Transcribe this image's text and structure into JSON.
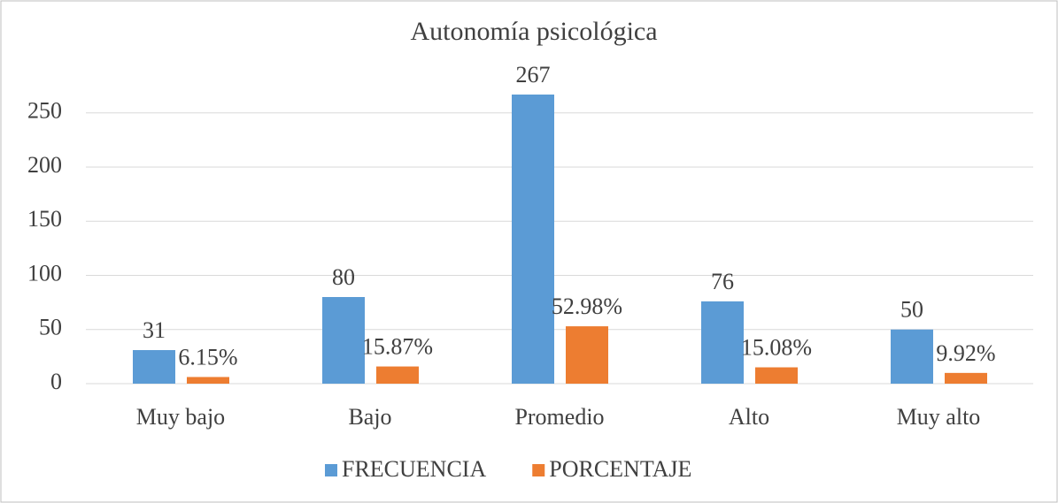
{
  "chart_data": {
    "type": "bar",
    "title": "Autonomía psicológica",
    "categories": [
      "Muy bajo",
      "Bajo",
      "Promedio",
      "Alto",
      "Muy alto"
    ],
    "series": [
      {
        "name": "FRECUENCIA",
        "color": "#5b9bd5",
        "values": [
          31,
          80,
          267,
          76,
          50
        ]
      },
      {
        "name": "PORCENTAJE",
        "color": "#ed7d31",
        "values": [
          6.15,
          15.87,
          52.98,
          15.08,
          9.92
        ],
        "value_labels": [
          "6.15%",
          "15.87%",
          "52.98%",
          "15.08%",
          "9.92%"
        ]
      }
    ],
    "ylim": [
      0,
      280
    ],
    "yticks": [
      0,
      50,
      100,
      150,
      200,
      250
    ],
    "grid": true,
    "legend": "bottom"
  }
}
